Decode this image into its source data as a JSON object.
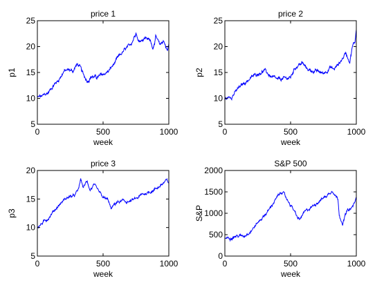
{
  "chart_data": [
    {
      "type": "line",
      "title": "price 1",
      "xlabel": "week",
      "ylabel": "p1",
      "xlim": [
        0,
        1000
      ],
      "ylim": [
        5,
        25
      ],
      "xticks": [
        0,
        500,
        1000
      ],
      "yticks": [
        5,
        10,
        15,
        20,
        25
      ],
      "color": "#0000ff",
      "keypoints": [
        [
          0,
          10.2
        ],
        [
          40,
          10.4
        ],
        [
          80,
          11.0
        ],
        [
          120,
          12.5
        ],
        [
          160,
          13.5
        ],
        [
          200,
          15.2
        ],
        [
          240,
          15.5
        ],
        [
          270,
          15.3
        ],
        [
          300,
          16.5
        ],
        [
          320,
          16.3
        ],
        [
          350,
          14.5
        ],
        [
          380,
          13.4
        ],
        [
          410,
          14.3
        ],
        [
          450,
          14.0
        ],
        [
          500,
          14.6
        ],
        [
          540,
          15.2
        ],
        [
          580,
          16.5
        ],
        [
          620,
          18.0
        ],
        [
          660,
          19.2
        ],
        [
          700,
          20.0
        ],
        [
          730,
          21.5
        ],
        [
          750,
          23.0
        ],
        [
          770,
          21.0
        ],
        [
          800,
          21.5
        ],
        [
          830,
          21.8
        ],
        [
          860,
          21.0
        ],
        [
          880,
          19.8
        ],
        [
          900,
          22.0
        ],
        [
          930,
          20.2
        ],
        [
          960,
          21.2
        ],
        [
          990,
          19.2
        ],
        [
          1000,
          20.5
        ]
      ]
    },
    {
      "type": "line",
      "title": "price 2",
      "xlabel": "week",
      "ylabel": "p2",
      "xlim": [
        0,
        1000
      ],
      "ylim": [
        5,
        25
      ],
      "xticks": [
        0,
        500,
        1000
      ],
      "yticks": [
        5,
        10,
        15,
        20,
        25
      ],
      "color": "#0000ff",
      "keypoints": [
        [
          0,
          9.8
        ],
        [
          50,
          10.4
        ],
        [
          100,
          11.8
        ],
        [
          150,
          13.0
        ],
        [
          200,
          14.0
        ],
        [
          250,
          14.8
        ],
        [
          300,
          15.4
        ],
        [
          350,
          14.2
        ],
        [
          400,
          13.5
        ],
        [
          450,
          13.8
        ],
        [
          500,
          14.0
        ],
        [
          530,
          15.8
        ],
        [
          560,
          16.5
        ],
        [
          590,
          16.8
        ],
        [
          620,
          15.8
        ],
        [
          650,
          15.4
        ],
        [
          700,
          15.2
        ],
        [
          750,
          14.8
        ],
        [
          800,
          16.0
        ],
        [
          830,
          15.6
        ],
        [
          860,
          16.5
        ],
        [
          890,
          17.5
        ],
        [
          920,
          18.8
        ],
        [
          950,
          17.2
        ],
        [
          970,
          20.0
        ],
        [
          990,
          21.0
        ],
        [
          1000,
          23.5
        ]
      ]
    },
    {
      "type": "line",
      "title": "price 3",
      "xlabel": "week",
      "ylabel": "p3",
      "xlim": [
        0,
        1000
      ],
      "ylim": [
        5,
        20
      ],
      "xticks": [
        0,
        500,
        1000
      ],
      "yticks": [
        5,
        10,
        15,
        20
      ],
      "color": "#0000ff",
      "keypoints": [
        [
          0,
          10.0
        ],
        [
          40,
          10.8
        ],
        [
          80,
          11.6
        ],
        [
          120,
          12.8
        ],
        [
          160,
          13.8
        ],
        [
          200,
          14.8
        ],
        [
          240,
          15.4
        ],
        [
          280,
          15.5
        ],
        [
          310,
          16.5
        ],
        [
          330,
          18.4
        ],
        [
          350,
          17.0
        ],
        [
          380,
          18.2
        ],
        [
          400,
          16.6
        ],
        [
          430,
          17.4
        ],
        [
          460,
          16.4
        ],
        [
          500,
          15.2
        ],
        [
          540,
          14.8
        ],
        [
          560,
          13.2
        ],
        [
          600,
          14.4
        ],
        [
          650,
          14.6
        ],
        [
          700,
          14.5
        ],
        [
          750,
          15.0
        ],
        [
          800,
          15.8
        ],
        [
          850,
          16.2
        ],
        [
          900,
          16.8
        ],
        [
          950,
          17.6
        ],
        [
          980,
          18.2
        ],
        [
          1000,
          17.8
        ]
      ]
    },
    {
      "type": "line",
      "title": "S&P 500",
      "xlabel": "week",
      "ylabel": "S&P",
      "xlim": [
        0,
        1000
      ],
      "ylim": [
        0,
        2000
      ],
      "xticks": [
        0,
        500,
        1000
      ],
      "yticks": [
        0,
        500,
        1000,
        1500,
        2000
      ],
      "color": "#0000ff",
      "keypoints": [
        [
          0,
          420
        ],
        [
          40,
          440
        ],
        [
          80,
          470
        ],
        [
          120,
          470
        ],
        [
          150,
          480
        ],
        [
          200,
          600
        ],
        [
          250,
          780
        ],
        [
          300,
          950
        ],
        [
          340,
          1100
        ],
        [
          380,
          1300
        ],
        [
          420,
          1450
        ],
        [
          440,
          1520
        ],
        [
          460,
          1380
        ],
        [
          490,
          1250
        ],
        [
          520,
          1100
        ],
        [
          550,
          900
        ],
        [
          570,
          850
        ],
        [
          600,
          1000
        ],
        [
          640,
          1100
        ],
        [
          680,
          1200
        ],
        [
          720,
          1300
        ],
        [
          760,
          1380
        ],
        [
          790,
          1450
        ],
        [
          820,
          1550
        ],
        [
          840,
          1420
        ],
        [
          860,
          1350
        ],
        [
          870,
          1000
        ],
        [
          885,
          850
        ],
        [
          895,
          700
        ],
        [
          910,
          900
        ],
        [
          930,
          1050
        ],
        [
          960,
          1100
        ],
        [
          980,
          1200
        ],
        [
          1000,
          1350
        ]
      ]
    }
  ]
}
